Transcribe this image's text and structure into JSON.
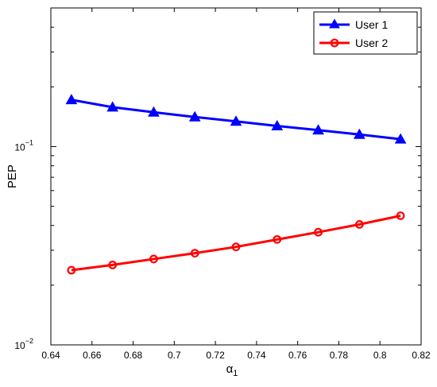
{
  "chart_data": {
    "type": "line",
    "title": "",
    "xlabel": "α",
    "xlabel_subscript": "1",
    "ylabel": "PEP",
    "xlim": [
      0.64,
      0.82
    ],
    "ylim": [
      0.01,
      0.5
    ],
    "yscale": "log",
    "grid": false,
    "legend_position": "top-right",
    "x_ticks": [
      0.64,
      0.66,
      0.68,
      0.7,
      0.72,
      0.74,
      0.76,
      0.78,
      0.8,
      0.82
    ],
    "x_tick_labels": [
      "0.64",
      "0.66",
      "0.68",
      "0.7",
      "0.72",
      "0.74",
      "0.76",
      "0.78",
      "0.8",
      "0.82"
    ],
    "y_tick_labels": [
      {
        "base": "10",
        "exp": "−1",
        "value": 0.1
      },
      {
        "base": "10",
        "exp": "−2",
        "value": 0.01
      }
    ],
    "x": [
      0.65,
      0.67,
      0.69,
      0.71,
      0.73,
      0.75,
      0.77,
      0.79,
      0.81
    ],
    "series": [
      {
        "name": "User 1",
        "color": "#0000ff",
        "marker": "triangle",
        "values": [
          0.172,
          0.158,
          0.149,
          0.141,
          0.134,
          0.127,
          0.121,
          0.115,
          0.109
        ]
      },
      {
        "name": "User 2",
        "color": "#ff0000",
        "marker": "circle",
        "values": [
          0.0238,
          0.0253,
          0.0271,
          0.029,
          0.0312,
          0.034,
          0.037,
          0.0405,
          0.0448
        ]
      }
    ]
  }
}
